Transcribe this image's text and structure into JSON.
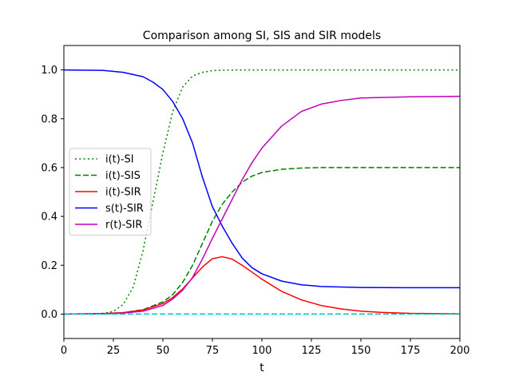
{
  "chart_data": {
    "type": "line",
    "title": "Comparison among SI, SIS and SIR models",
    "xlabel": "t",
    "ylabel": "",
    "xlim": [
      0,
      200
    ],
    "ylim": [
      -0.1,
      1.1
    ],
    "xticks": [
      0,
      25,
      50,
      75,
      100,
      125,
      150,
      175,
      200
    ],
    "yticks": [
      0.0,
      0.2,
      0.4,
      0.6,
      0.8,
      1.0
    ],
    "xtick_labels": [
      "0",
      "25",
      "50",
      "75",
      "100",
      "125",
      "150",
      "175",
      "200"
    ],
    "ytick_labels": [
      "0.0",
      "0.2",
      "0.4",
      "0.6",
      "0.8",
      "1.0"
    ],
    "grid": false,
    "legend_position": "center-left",
    "series": [
      {
        "name": "i(t)-SI",
        "color": "#008000",
        "style": "dotted",
        "x": [
          0,
          10,
          20,
          25,
          30,
          35,
          40,
          45,
          50,
          55,
          60,
          65,
          70,
          75,
          80,
          90,
          100,
          125,
          150,
          175,
          200
        ],
        "y": [
          0.0,
          0.001,
          0.003,
          0.011,
          0.04,
          0.11,
          0.26,
          0.46,
          0.66,
          0.83,
          0.93,
          0.975,
          0.99,
          0.997,
          0.999,
          1.0,
          1.0,
          1.0,
          1.0,
          1.0,
          1.0
        ]
      },
      {
        "name": "i(t)-SIS",
        "color": "#008000",
        "style": "dashed",
        "x": [
          0,
          20,
          30,
          40,
          50,
          55,
          60,
          65,
          70,
          75,
          80,
          85,
          90,
          95,
          100,
          110,
          120,
          130,
          150,
          175,
          200
        ],
        "y": [
          0.0,
          0.002,
          0.006,
          0.018,
          0.05,
          0.08,
          0.13,
          0.2,
          0.29,
          0.38,
          0.45,
          0.5,
          0.54,
          0.565,
          0.58,
          0.593,
          0.598,
          0.6,
          0.6,
          0.6,
          0.6
        ]
      },
      {
        "name": "i(t)-SIR",
        "color": "#ff0000",
        "style": "solid",
        "x": [
          0,
          20,
          30,
          40,
          50,
          55,
          60,
          65,
          70,
          75,
          80,
          85,
          90,
          95,
          100,
          110,
          120,
          130,
          140,
          150,
          160,
          175,
          200
        ],
        "y": [
          0.0,
          0.002,
          0.006,
          0.017,
          0.043,
          0.068,
          0.103,
          0.148,
          0.193,
          0.227,
          0.235,
          0.225,
          0.2,
          0.172,
          0.143,
          0.093,
          0.058,
          0.035,
          0.021,
          0.012,
          0.007,
          0.003,
          0.001
        ]
      },
      {
        "name": "s(t)-SIR",
        "color": "#0000ff",
        "style": "solid",
        "x": [
          0,
          20,
          30,
          40,
          45,
          50,
          55,
          60,
          65,
          70,
          75,
          80,
          85,
          90,
          95,
          100,
          110,
          120,
          130,
          150,
          175,
          200
        ],
        "y": [
          1.0,
          0.998,
          0.99,
          0.972,
          0.95,
          0.92,
          0.87,
          0.8,
          0.7,
          0.56,
          0.44,
          0.36,
          0.29,
          0.23,
          0.19,
          0.165,
          0.135,
          0.12,
          0.113,
          0.109,
          0.108,
          0.108
        ]
      },
      {
        "name": "r(t)-SIR",
        "color": "#bf00bf",
        "style": "solid",
        "x": [
          0,
          20,
          30,
          40,
          50,
          55,
          60,
          65,
          70,
          75,
          80,
          85,
          90,
          95,
          100,
          110,
          120,
          130,
          140,
          150,
          175,
          200
        ],
        "y": [
          0.0,
          0.001,
          0.004,
          0.012,
          0.035,
          0.062,
          0.098,
          0.15,
          0.226,
          0.31,
          0.39,
          0.47,
          0.55,
          0.62,
          0.68,
          0.77,
          0.83,
          0.86,
          0.875,
          0.885,
          0.89,
          0.892
        ]
      },
      {
        "color": "#00bfbf",
        "style": "dashed",
        "x": [
          0,
          200
        ],
        "y": [
          0.0,
          0.0
        ]
      }
    ]
  }
}
